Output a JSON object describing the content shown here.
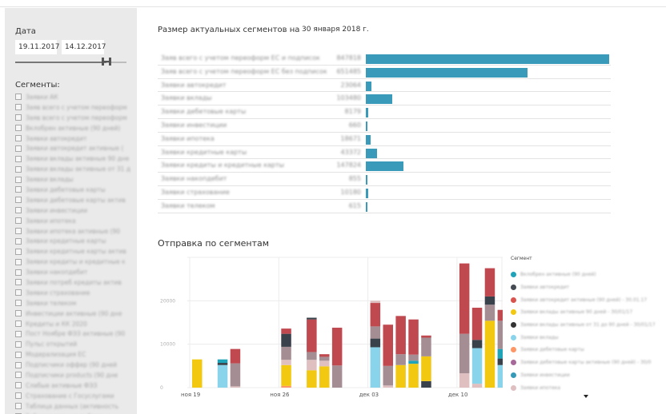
{
  "filters": {
    "date_label": "Дата",
    "date_start": "19.11.2017",
    "date_end": "14.12.2017",
    "date_slider_fraction": 0.82,
    "segments_label": "Сегменты:",
    "segment_items": [
      "Заявки АК",
      "Заяв всего с учетом переоформ",
      "Заяв всего с учетом переоформ",
      "Вклобрен активные (90 дней)",
      "Заявки автокредит",
      "Заявки автокредит активные (",
      "Заявки вклады активные 90 дне",
      "Заявки вклады активные от 31 д",
      "Заявки вклады",
      "Заявки дебетовые карты",
      "Заявки дебетовые карты актив",
      "Заявки инвестиции",
      "Заявки ипотека",
      "Заявки ипотека активные (90",
      "Заявки кредитные карты",
      "Заявки кредитные карты актив",
      "Заявки кредиты и кредитные к",
      "Заявки накопдебит",
      "Заявки потреб кредиты актив",
      "Заявки страхование",
      "Заявки телеком",
      "Инвестиции активные (90 дне",
      "Кредиты и КК 2020",
      "Пост Ноябре ФЭЗ активные (90",
      "Пульс открытий",
      "Модерализация ЕС",
      "Подписчики оффер (90 дней",
      "Подписчики products (90 дне",
      "Слабые активные ФЭЗ",
      "Страхование с Госуслугами",
      "Таблица данных (активность",
      "Таблица данных рублевые"
    ]
  },
  "table": {
    "title": "Размер актуальных сегментов на",
    "date": "30 января 2018 г.",
    "rows": [
      {
        "name": "Заяв всего с учетом переоформ ЕС и подписок",
        "value": "847818",
        "fraction": 1.0
      },
      {
        "name": "Заяв всего с учетом переоформ ЕС без подписок",
        "value": "651485",
        "fraction": 0.666
      },
      {
        "name": "Заявки автокредит",
        "value": "23064",
        "fraction": 0.024
      },
      {
        "name": "Заявки вклады",
        "value": "103480",
        "fraction": 0.11
      },
      {
        "name": "Заявки дебетовые карты",
        "value": "8179",
        "fraction": 0.009
      },
      {
        "name": "Заявки инвестиции",
        "value": "660",
        "fraction": 0.002
      },
      {
        "name": "Заявки ипотека",
        "value": "18671",
        "fraction": 0.02
      },
      {
        "name": "Заявки кредитные карты",
        "value": "43372",
        "fraction": 0.046
      },
      {
        "name": "Заявки кредиты и кредитные карты",
        "value": "147824",
        "fraction": 0.155
      },
      {
        "name": "Заявки накопдебит",
        "value": "855",
        "fraction": 0.002
      },
      {
        "name": "Заявки страхование",
        "value": "10180",
        "fraction": 0.011
      },
      {
        "name": "Заявки телеком",
        "value": "615",
        "fraction": 0.002
      }
    ]
  },
  "chart_title": "Отправка по сегментам",
  "legend_title": "Сегмент",
  "legend": [
    {
      "name": "Вклобрен активные (90 дней)",
      "color": "#1fa3b9"
    },
    {
      "name": "Заявки автокредит",
      "color": "#444b52"
    },
    {
      "name": "Заявки автокредит активные (90 дней) - 30.01.17",
      "color": "#d9534f"
    },
    {
      "name": "Заявки вклады активные 90 дней - 30/01/17",
      "color": "#f2c811"
    },
    {
      "name": "Заявки вклады активные от 31 до 90 дней - 30/01/17",
      "color": "#333333"
    },
    {
      "name": "Заявки вклады",
      "color": "#8ad4eb"
    },
    {
      "name": "Заявки дебетовые карты",
      "color": "#fe9666"
    },
    {
      "name": "Заявки дебетовые карты активные (90 дней) - 30/0",
      "color": "#a66999"
    },
    {
      "name": "Заявки инвестиции",
      "color": "#3599b8"
    },
    {
      "name": "Заявки ипотека",
      "color": "#dfbfbf"
    }
  ],
  "chart_data": {
    "type": "bar",
    "stacked": true,
    "ylim": [
      0,
      30000
    ],
    "yticks": [
      0,
      10000,
      20000
    ],
    "ytick_labels": [
      "0",
      "10000",
      "20000"
    ],
    "xtick_labels": [
      "ноя 19",
      "ноя 26",
      "дек 03",
      "дек 10"
    ],
    "xtick_days": [
      0,
      7,
      14,
      21
    ],
    "grid": true,
    "colors": {
      "yellow": "#f2c811",
      "skyblue": "#8ad4eb",
      "teal": "#1fa3b9",
      "red": "#c0484f",
      "mauve": "#a48e93",
      "dark": "#39424a",
      "pink": "#dfbfbf",
      "orange": "#fe9666"
    },
    "bars": [
      {
        "day": 0,
        "segments": [
          {
            "c": "yellow",
            "v": 6500
          }
        ]
      },
      {
        "day": 2,
        "segments": [
          {
            "c": "skyblue",
            "v": 5200
          },
          {
            "c": "dark",
            "v": 500
          },
          {
            "c": "teal",
            "v": 800
          }
        ]
      },
      {
        "day": 3,
        "segments": [
          {
            "c": "pink",
            "v": 300
          },
          {
            "c": "mauve",
            "v": 5300
          },
          {
            "c": "red",
            "v": 3300
          }
        ]
      },
      {
        "day": 7,
        "segments": [
          {
            "c": "orange",
            "v": 400
          },
          {
            "c": "yellow",
            "v": 4800
          },
          {
            "c": "pink",
            "v": 1200
          },
          {
            "c": "mauve",
            "v": 3000
          },
          {
            "c": "dark",
            "v": 3000
          },
          {
            "c": "red",
            "v": 1200
          }
        ]
      },
      {
        "day": 9,
        "segments": [
          {
            "c": "yellow",
            "v": 4000
          },
          {
            "c": "pink",
            "v": 2400
          },
          {
            "c": "mauve",
            "v": 1800
          },
          {
            "c": "red",
            "v": 7500
          },
          {
            "c": "dark",
            "v": 400
          }
        ]
      },
      {
        "day": 10,
        "segments": [
          {
            "c": "yellow",
            "v": 4900
          },
          {
            "c": "pink",
            "v": 1300
          },
          {
            "c": "mauve",
            "v": 900
          },
          {
            "c": "red",
            "v": 600
          }
        ]
      },
      {
        "day": 11,
        "segments": [
          {
            "c": "mauve",
            "v": 5100
          },
          {
            "c": "red",
            "v": 8700
          }
        ]
      },
      {
        "day": 14,
        "segments": [
          {
            "c": "skyblue",
            "v": 9300
          },
          {
            "c": "dark",
            "v": 2000
          },
          {
            "c": "mauve",
            "v": 2800
          },
          {
            "c": "red",
            "v": 5400
          },
          {
            "c": "pink",
            "v": 500
          }
        ]
      },
      {
        "day": 15,
        "segments": [
          {
            "c": "pink",
            "v": 500
          },
          {
            "c": "mauve",
            "v": 4500
          },
          {
            "c": "red",
            "v": 9500
          }
        ]
      },
      {
        "day": 16,
        "segments": [
          {
            "c": "yellow",
            "v": 5200
          },
          {
            "c": "mauve",
            "v": 2500
          },
          {
            "c": "red",
            "v": 8800
          }
        ]
      },
      {
        "day": 17,
        "segments": [
          {
            "c": "yellow",
            "v": 5500
          },
          {
            "c": "teal",
            "v": 700
          },
          {
            "c": "mauve",
            "v": 1400
          },
          {
            "c": "red",
            "v": 8100
          }
        ]
      },
      {
        "day": 18,
        "segments": [
          {
            "c": "dark",
            "v": 1500
          },
          {
            "c": "yellow",
            "v": 5700
          },
          {
            "c": "mauve",
            "v": 4300
          },
          {
            "c": "red",
            "v": 500
          }
        ]
      },
      {
        "day": 21,
        "segments": [
          {
            "c": "pink",
            "v": 3300
          },
          {
            "c": "mauve",
            "v": 9100
          },
          {
            "c": "red",
            "v": 16200
          }
        ]
      },
      {
        "day": 22,
        "segments": [
          {
            "c": "pink",
            "v": 900
          },
          {
            "c": "skyblue",
            "v": 8200
          },
          {
            "c": "dark",
            "v": 1900
          },
          {
            "c": "red",
            "v": 7400
          }
        ]
      },
      {
        "day": 23,
        "segments": [
          {
            "c": "yellow",
            "v": 15400
          },
          {
            "c": "mauve",
            "v": 3700
          },
          {
            "c": "dark",
            "v": 1900
          },
          {
            "c": "red",
            "v": 6500
          }
        ]
      },
      {
        "day": 24,
        "segments": [
          {
            "c": "skyblue",
            "v": 5200
          },
          {
            "c": "dark",
            "v": 1500
          },
          {
            "c": "teal",
            "v": 2200
          },
          {
            "c": "mauve",
            "v": 6500
          },
          {
            "c": "red",
            "v": 2500
          }
        ]
      }
    ]
  }
}
